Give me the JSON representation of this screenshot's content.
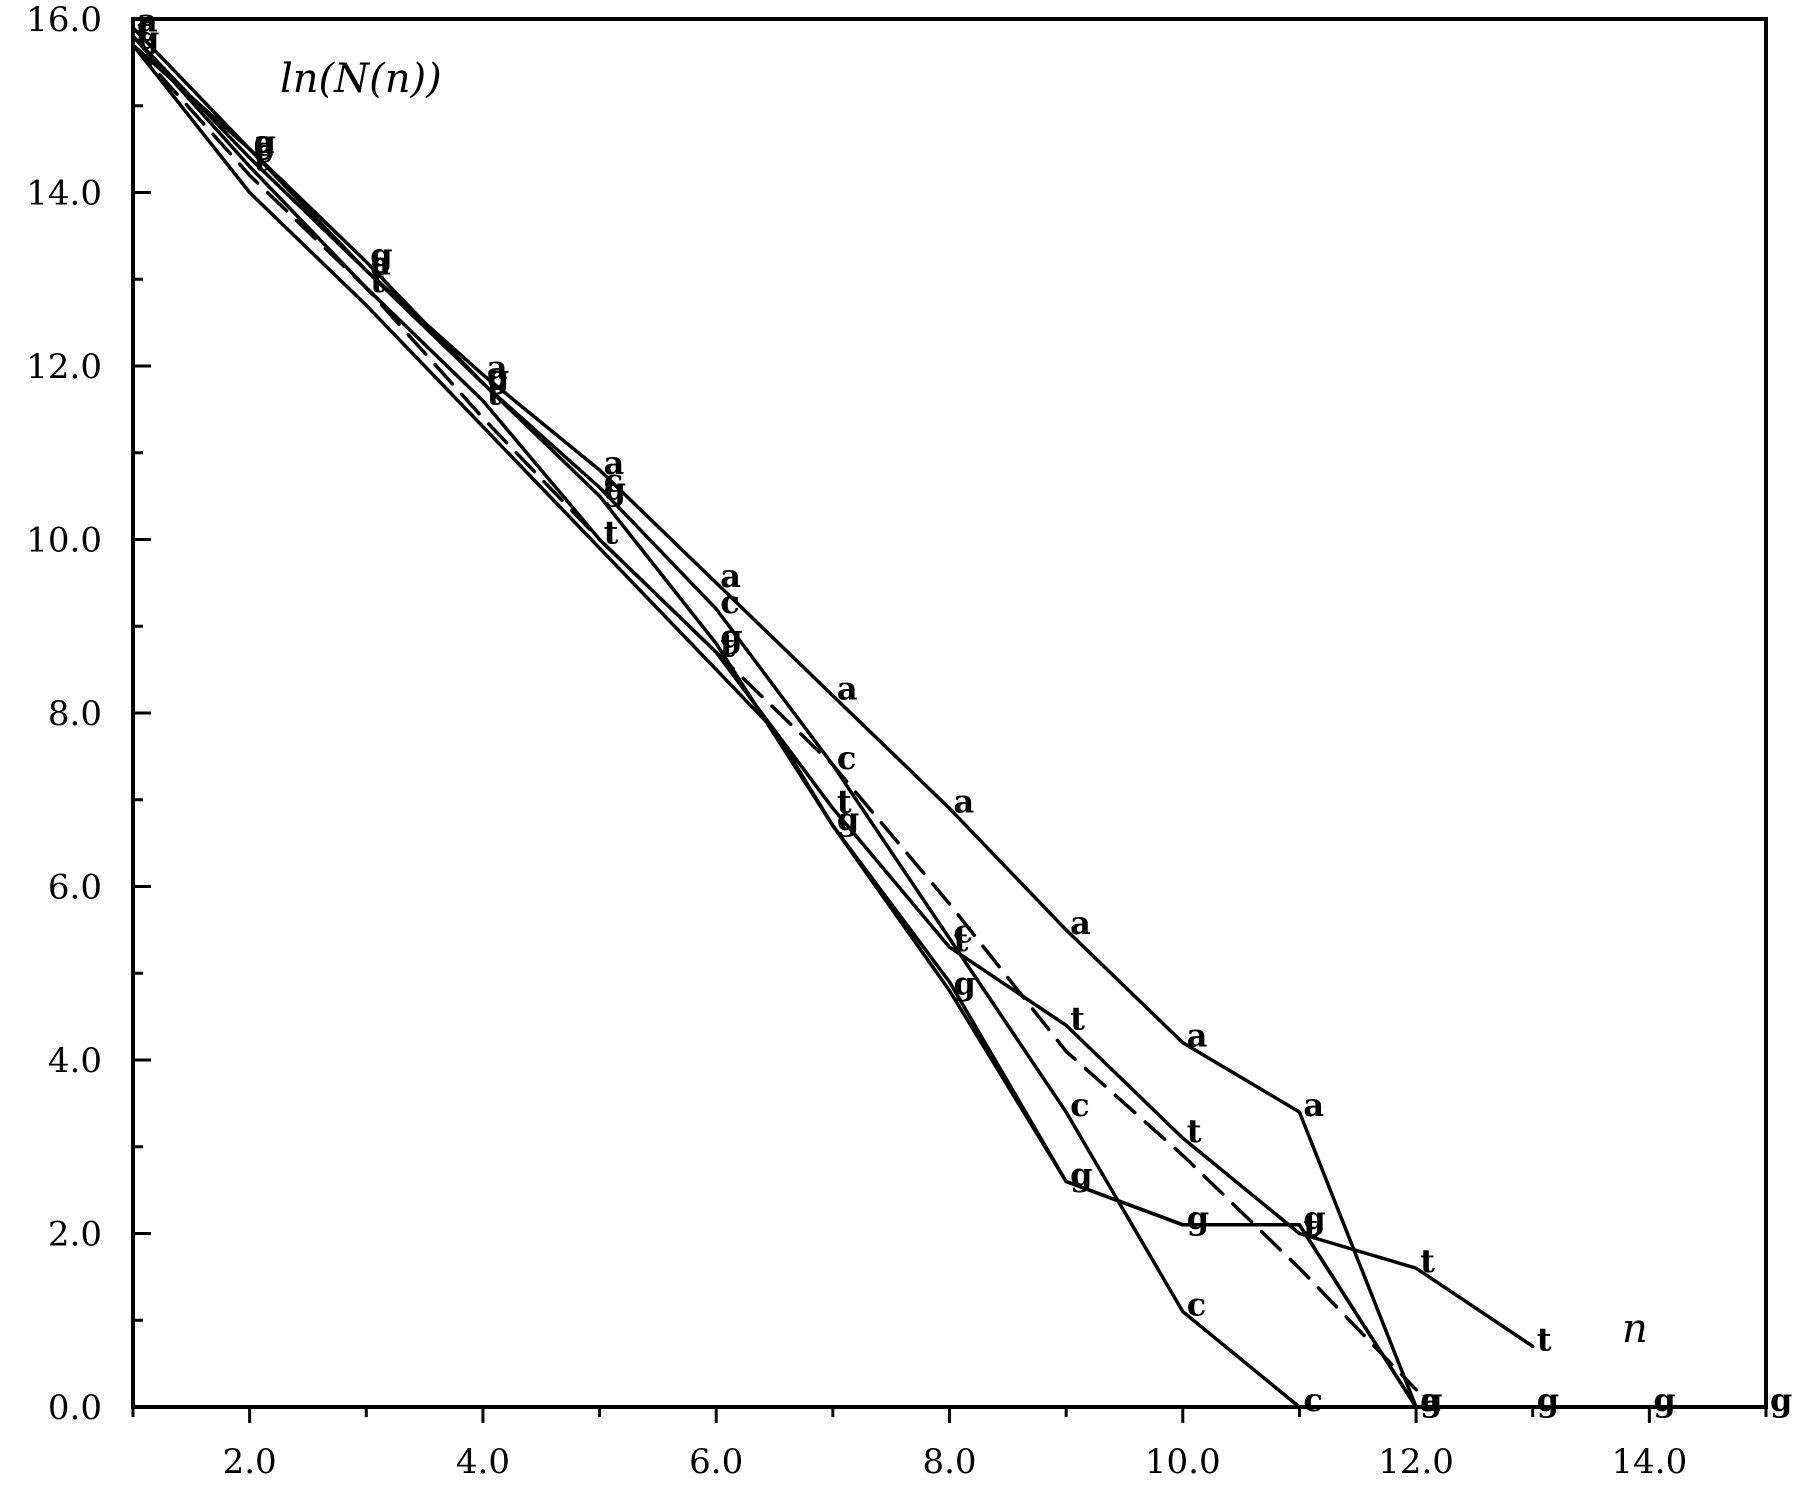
{
  "chart_data": {
    "type": "line",
    "title": "",
    "ylabel": "ln(N(n))",
    "xlabel": "n",
    "xlim": [
      1.0,
      15.0
    ],
    "ylim": [
      0.0,
      16.0
    ],
    "xticks": [
      2,
      4,
      6,
      8,
      10,
      12,
      14
    ],
    "xtick_labels": [
      "2.0",
      "4.0",
      "6.0",
      "8.0",
      "10.0",
      "12.0",
      "14.0"
    ],
    "yticks": [
      0,
      2,
      4,
      6,
      8,
      10,
      12,
      14,
      16
    ],
    "ytick_labels": [
      "0.0",
      "2.0",
      "4.0",
      "6.0",
      "8.0",
      "10.0",
      "12.0",
      "14.0",
      "16.0"
    ],
    "grid": false,
    "legend": "none",
    "series": [
      {
        "name": "a",
        "marker": "a",
        "dashed": false,
        "x": [
          1,
          2,
          3,
          4,
          5,
          6,
          7,
          8,
          9,
          10,
          11,
          12
        ],
        "y": [
          15.9,
          14.5,
          13.1,
          11.9,
          10.8,
          9.5,
          8.2,
          6.9,
          5.5,
          4.2,
          3.4,
          0.0
        ]
      },
      {
        "name": "c",
        "marker": "c",
        "dashed": false,
        "x": [
          1,
          2,
          3,
          4,
          5,
          6,
          7,
          8,
          9,
          10,
          11
        ],
        "y": [
          15.8,
          14.4,
          13.1,
          11.8,
          10.6,
          9.2,
          7.4,
          5.4,
          3.4,
          1.1,
          0.0
        ]
      },
      {
        "name": "t",
        "marker": "t",
        "dashed": false,
        "x": [
          1,
          2,
          3,
          4,
          5,
          6,
          7,
          8,
          9,
          10,
          11,
          12,
          13
        ],
        "y": [
          15.8,
          14.3,
          12.9,
          11.6,
          10.0,
          8.7,
          6.9,
          5.3,
          4.4,
          3.1,
          2.0,
          1.6,
          0.7
        ]
      },
      {
        "name": "g",
        "marker": "g",
        "dashed": false,
        "x": [
          1,
          2,
          3,
          4,
          5,
          6,
          7,
          8,
          9,
          10,
          11,
          12,
          13,
          14,
          15
        ],
        "y": [
          15.7,
          14.5,
          13.2,
          11.8,
          10.5,
          8.8,
          6.7,
          4.8,
          2.6,
          2.1,
          2.1,
          0.0,
          0.0,
          0.0,
          0.0
        ]
      },
      {
        "name": "",
        "marker": "",
        "dashed": true,
        "x": [
          1,
          2,
          3,
          4,
          5,
          6,
          7,
          8,
          9,
          10,
          11,
          12
        ],
        "y": [
          15.7,
          14.2,
          12.9,
          11.4,
          10.0,
          8.7,
          7.4,
          5.8,
          4.1,
          2.9,
          1.6,
          0.2
        ]
      },
      {
        "name": "",
        "marker": "",
        "dashed": false,
        "x": [
          1,
          2,
          3,
          4,
          5,
          6,
          6.5,
          7,
          8,
          9,
          10,
          11,
          12
        ],
        "y": [
          15.7,
          14.0,
          12.7,
          11.3,
          9.9,
          8.5,
          7.8,
          6.7,
          4.9,
          2.6,
          2.1,
          2.1,
          0.0
        ]
      }
    ]
  }
}
